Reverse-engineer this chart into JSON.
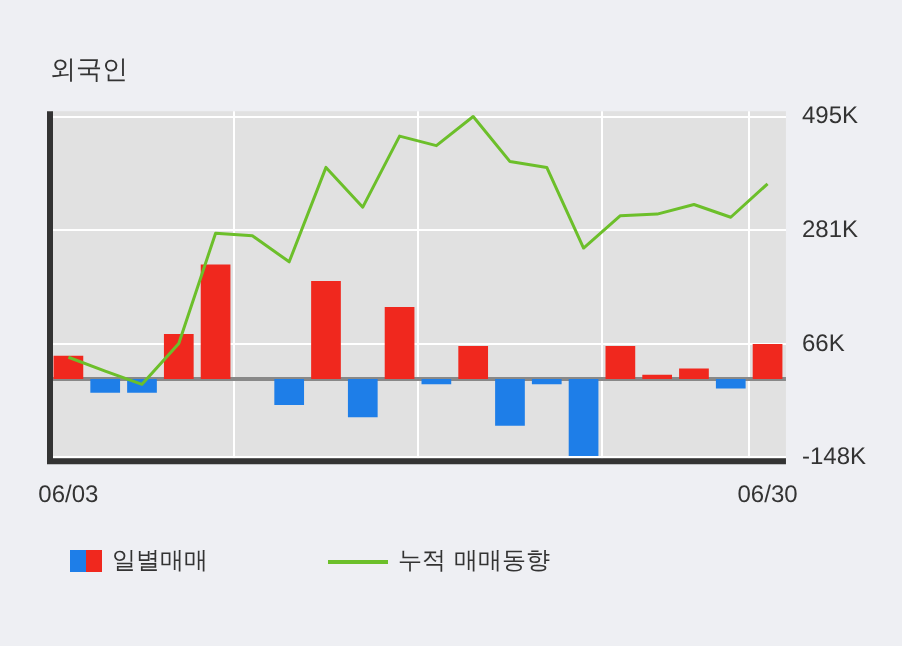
{
  "chart_data": {
    "type": "bar",
    "title": "외국인",
    "categories": [
      "06/03",
      null,
      null,
      null,
      null,
      null,
      null,
      null,
      null,
      null,
      null,
      null,
      null,
      null,
      null,
      null,
      null,
      null,
      null,
      "06/30"
    ],
    "series": [
      {
        "name": "일별매매",
        "colors": [
          "#f0281e",
          "#1e7ee8",
          "#1e7ee8",
          "#f0281e",
          "#f0281e",
          "#f0281e",
          "#1e7ee8",
          "#f0281e",
          "#1e7ee8",
          "#f0281e",
          "#1e7ee8",
          "#f0281e",
          "#1e7ee8",
          "#1e7ee8",
          "#1e7ee8",
          "#f0281e",
          "#f0281e",
          "#f0281e",
          "#1e7ee8",
          "#f0281e"
        ],
        "values": [
          44,
          -26,
          -26,
          85,
          216,
          0,
          -49,
          185,
          -72,
          136,
          -10,
          62,
          -88,
          -10,
          -145,
          62,
          8,
          20,
          -18,
          66
        ]
      },
      {
        "name": "누적 매매동향",
        "type": "line",
        "color": "#6cbf2a",
        "values": [
          41,
          15,
          -10,
          67,
          275,
          270,
          221,
          399,
          324,
          458,
          440,
          495,
          410,
          399,
          247,
          308,
          311,
          329,
          305,
          368
        ]
      }
    ],
    "ylim": [
      -155,
      505
    ],
    "yticks": [
      {
        "value": -148,
        "label": "-148K"
      },
      {
        "value": 66,
        "label": "66K"
      },
      {
        "value": 281,
        "label": "281K"
      },
      {
        "value": 495,
        "label": "495K"
      }
    ],
    "ref_lines": [
      {
        "axis": "y",
        "value": 0,
        "color": "#888888"
      }
    ],
    "grid": true,
    "legend": "bottom",
    "marker": "none",
    "line_style": "solid"
  }
}
